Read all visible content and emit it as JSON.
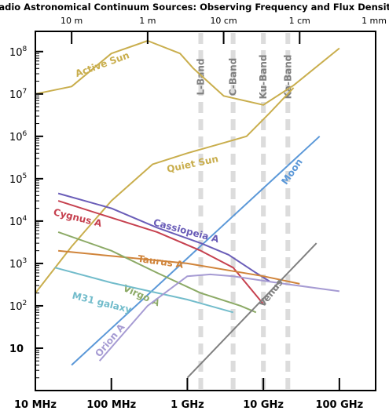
{
  "chart_data": {
    "type": "line",
    "title": "Radio Astronomical Continuum Sources: Observing Frequency and Flux Density",
    "x_scale": "log",
    "y_scale": "log",
    "x_unit": "Hz",
    "xlim": [
      10000000,
      300000000000
    ],
    "ylim": [
      1,
      300000000
    ],
    "x_ticks": [
      {
        "value": 10000000,
        "label": "10 MHz"
      },
      {
        "value": 100000000,
        "label": "100 MHz"
      },
      {
        "value": 1000000000,
        "label": "1 GHz"
      },
      {
        "value": 10000000000,
        "label": "10 GHz"
      },
      {
        "value": 100000000000,
        "label": "100 GHz"
      }
    ],
    "top_ticks": [
      {
        "value": 30000000,
        "label": "10 m"
      },
      {
        "value": 300000000,
        "label": "1 m"
      },
      {
        "value": 3000000000,
        "label": "10 cm"
      },
      {
        "value": 30000000000,
        "label": "1 cm"
      },
      {
        "value": 300000000000,
        "label": "1 mm"
      }
    ],
    "y_ticks": [
      {
        "value": 10,
        "base": "10",
        "exp": ""
      },
      {
        "value": 100,
        "base": "10",
        "exp": "2"
      },
      {
        "value": 1000,
        "base": "10",
        "exp": "3"
      },
      {
        "value": 10000,
        "base": "10",
        "exp": "4"
      },
      {
        "value": 100000,
        "base": "10",
        "exp": "5"
      },
      {
        "value": 1000000,
        "base": "10",
        "exp": "6"
      },
      {
        "value": 10000000,
        "base": "10",
        "exp": "7"
      },
      {
        "value": 100000000,
        "base": "10",
        "exp": "8"
      }
    ],
    "bands": [
      {
        "name": "L-Band",
        "x": 1500000000
      },
      {
        "name": "C-Band",
        "x": 4000000000
      },
      {
        "name": "Ku-Band",
        "x": 10000000000
      },
      {
        "name": "Ka-Band",
        "x": 21000000000
      }
    ],
    "series": [
      {
        "name": "Active Sun",
        "color": "#c9ae4d",
        "x": [
          10000000,
          30000000,
          100000000,
          300000000,
          800000000,
          1200000000,
          3000000000,
          10000000000,
          25000000000,
          100000000000
        ],
        "y": [
          10000000,
          15000000,
          90000000,
          180000000,
          90000000,
          40000000,
          9000000,
          5500000,
          16000000,
          120000000
        ],
        "label": {
          "x": 35000000,
          "y": 25000000,
          "angle": -20
        }
      },
      {
        "name": "Quiet Sun",
        "color": "#c9ae4d",
        "x": [
          10000000,
          30000000,
          100000000,
          350000000,
          1000000000,
          3000000000,
          6000000000,
          12000000000,
          25000000000
        ],
        "y": [
          200,
          2500,
          30000,
          220000,
          400000,
          700000,
          1000000,
          3500000,
          14000000
        ],
        "label": {
          "x": 550000000,
          "y": 140000,
          "angle": -12
        }
      },
      {
        "name": "Moon",
        "color": "#5b98d8",
        "x": [
          30000000,
          55000000000
        ],
        "y": [
          4,
          1000000
        ],
        "label": {
          "x": 20000000000,
          "y": 70000,
          "angle": -55
        }
      },
      {
        "name": "Cassiopeia A",
        "color": "#6a5db8",
        "x": [
          20000000,
          100000000,
          400000000,
          1500000000,
          3500000000,
          8000000000,
          12000000000
        ],
        "y": [
          45000,
          20000,
          7000,
          3000,
          1600,
          600,
          380
        ],
        "label": {
          "x": 350000000,
          "y": 8000,
          "angle": 15
        }
      },
      {
        "name": "Cygnus A",
        "color": "#c6414f",
        "x": [
          20000000,
          100000000,
          400000000,
          1500000000,
          4000000000,
          10000000000
        ],
        "y": [
          30000,
          12000,
          5500,
          2000,
          800,
          110
        ],
        "label": {
          "x": 17000000,
          "y": 14000,
          "angle": 14
        }
      },
      {
        "name": "Taurus A",
        "color": "#d0843a",
        "x": [
          20000000,
          100000000,
          1000000000,
          10000000000,
          30000000000
        ],
        "y": [
          2000,
          1500,
          1000,
          500,
          330
        ],
        "label": {
          "x": 220000000,
          "y": 1100,
          "angle": 8
        }
      },
      {
        "name": "Virgo A",
        "color": "#8caa66",
        "x": [
          20000000,
          100000000,
          400000000,
          1500000000,
          5000000000,
          8000000000
        ],
        "y": [
          5500,
          2000,
          600,
          200,
          100,
          70
        ],
        "label": {
          "x": 140000000,
          "y": 230,
          "angle": 24
        }
      },
      {
        "name": "M31 galaxy",
        "color": "#72bccb",
        "x": [
          18000000,
          100000000,
          1000000000,
          4000000000
        ],
        "y": [
          800,
          350,
          140,
          70
        ],
        "label": {
          "x": 30000000,
          "y": 150,
          "angle": 14
        }
      },
      {
        "name": "Orion A",
        "color": "#a69bd3",
        "x": [
          70000000,
          300000000,
          1000000000,
          2000000000,
          4000000000,
          15000000000,
          100000000000
        ],
        "y": [
          5,
          100,
          500,
          550,
          500,
          350,
          220
        ],
        "label": {
          "x": 70000000,
          "y": 6,
          "angle": -50
        }
      },
      {
        "name": "Venus",
        "color": "#808080",
        "x": [
          1000000000,
          50000000000
        ],
        "y": [
          2,
          3000
        ],
        "label": {
          "x": 10000000000,
          "y": 90,
          "angle": -52
        }
      }
    ]
  }
}
